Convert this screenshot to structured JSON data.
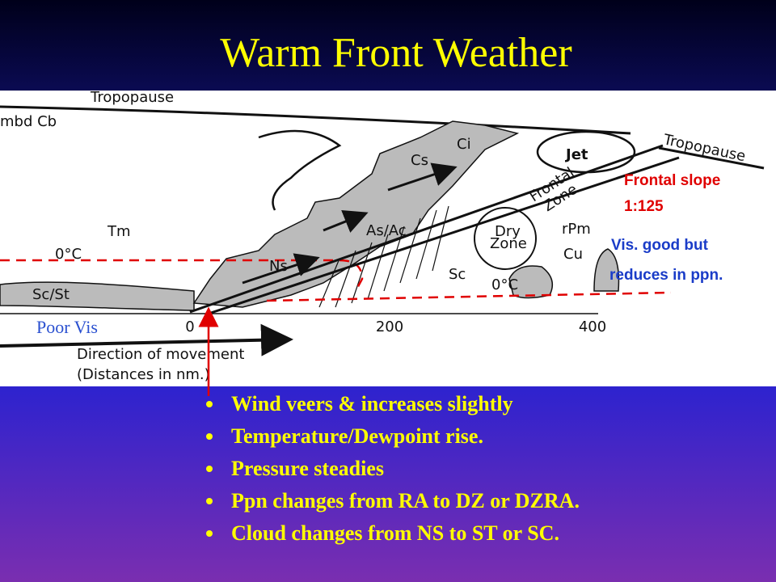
{
  "header": {
    "title": "Warm Front Weather"
  },
  "diagram": {
    "labels": [
      "Tropopause",
      "mbd Cb",
      "Tm",
      "0°C",
      "Sc/St",
      "Ns",
      "As/Ac",
      "Cs",
      "Ci",
      "Jet",
      "Tropopause",
      "Frontal",
      "Zone",
      "Dry",
      "Zone",
      "rPm",
      "Cu",
      "Sc",
      "0°C"
    ],
    "axis_labels": [
      "0",
      "200",
      "400"
    ],
    "movement": [
      "Direction of movement",
      "(Distances in nm.)"
    ]
  },
  "annotations": {
    "frontal_slope": [
      "Frontal slope",
      "1:125"
    ],
    "visibility": [
      "Vis. good but",
      "reduces in ppn."
    ],
    "poor_vis": "Poor Vis"
  },
  "bullets": [
    "Wind veers  & increases slightly",
    "Temperature/Dewpoint rise.",
    "Pressure steadies",
    "Ppn changes from RA to DZ or DZRA.",
    "Cloud changes from NS to ST or SC."
  ]
}
